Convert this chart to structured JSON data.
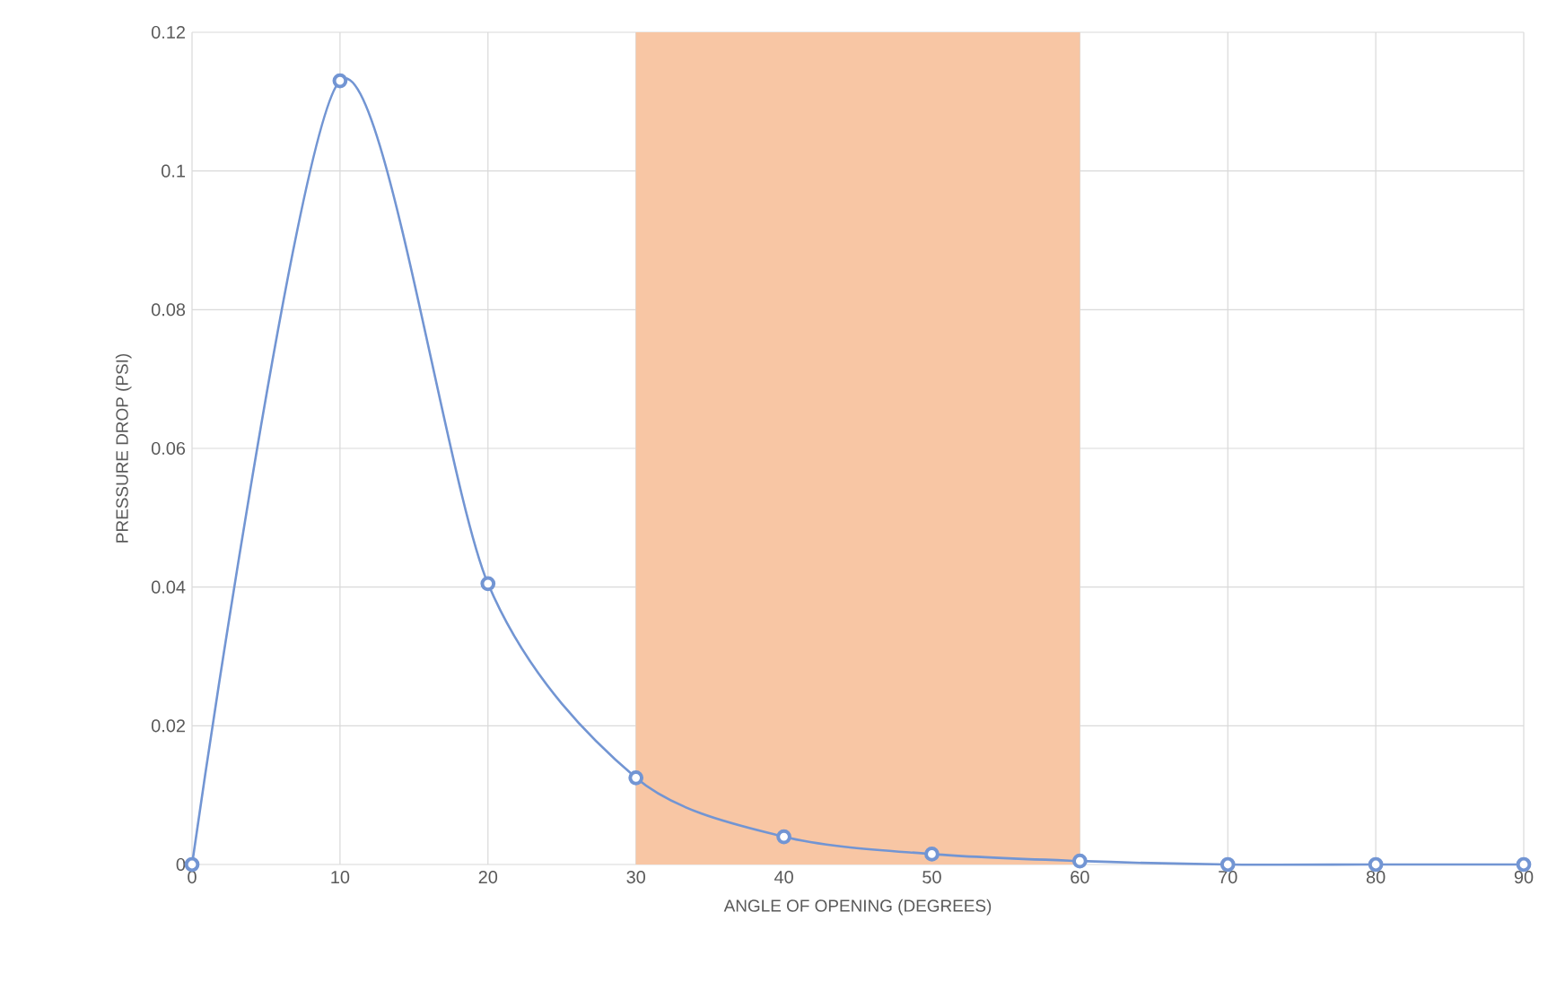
{
  "chart_data": {
    "type": "line",
    "xlabel": "ANGLE OF OPENING (DEGREES)",
    "ylabel": "PRESSURE DROP (PSI)",
    "x": [
      0,
      10,
      20,
      30,
      40,
      50,
      60,
      70,
      80,
      90
    ],
    "series": [
      {
        "color": "#7295d3",
        "values": [
          0,
          0.113,
          0.0405,
          0.0125,
          0.004,
          0.0015,
          0.0005,
          0,
          0,
          0
        ]
      }
    ],
    "xlim": [
      0,
      90
    ],
    "ylim": [
      0,
      0.12
    ],
    "xticks": [
      0,
      10,
      20,
      30,
      40,
      50,
      60,
      70,
      80,
      90
    ],
    "yticks": [
      0,
      0.02,
      0.04,
      0.06,
      0.08,
      0.1,
      0.12
    ],
    "bands": [
      {
        "axis": "x",
        "from": 30,
        "to": 60,
        "color": "#f8c6a4"
      }
    ],
    "grid": true,
    "marker": "circle",
    "line_style": "solid"
  }
}
